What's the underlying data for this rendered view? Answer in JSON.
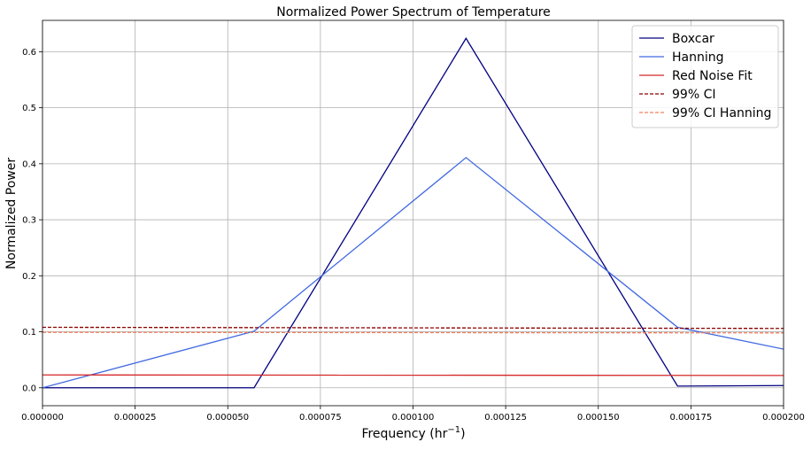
{
  "chart_data": {
    "type": "line",
    "title": "Normalized Power Spectrum of Temperature",
    "xlabel": "Frequency (hr",
    "xlabel_superscript": "−1",
    "xlabel_close": ")",
    "ylabel": "Normalized Power",
    "xlim": [
      0,
      0.0002
    ],
    "ylim": [
      -0.032,
      0.656
    ],
    "grid": true,
    "legend_position": "top-right",
    "x_ticks": [
      0,
      2.5e-05,
      5e-05,
      7.5e-05,
      0.0001,
      0.000125,
      0.00015,
      0.000175,
      0.0002
    ],
    "x_tick_labels": [
      "0.000000",
      "0.000025",
      "0.000050",
      "0.000075",
      "0.000100",
      "0.000125",
      "0.000150",
      "0.000175",
      "0.000200"
    ],
    "y_ticks": [
      0.0,
      0.1,
      0.2,
      0.3,
      0.4,
      0.5,
      0.6
    ],
    "y_tick_labels": [
      "0.0",
      "0.1",
      "0.2",
      "0.3",
      "0.4",
      "0.5",
      "0.6"
    ],
    "series": [
      {
        "name": "Boxcar",
        "color": "#000080",
        "dash": "solid",
        "x": [
          0,
          5.71e-05,
          0.0001143,
          0.0001714,
          0.0002286
        ],
        "y": [
          0.0,
          0.0,
          0.624,
          0.003,
          0.005
        ]
      },
      {
        "name": "Hanning",
        "color": "#4169e1",
        "dash": "solid",
        "x": [
          0,
          5.71e-05,
          0.0001143,
          0.0001714,
          0.0002286
        ],
        "y": [
          0.0,
          0.101,
          0.411,
          0.108,
          0.03
        ]
      },
      {
        "name": "Red Noise Fit",
        "color": "#d62728",
        "dash": "solid",
        "x": [
          0,
          0.0002
        ],
        "y": [
          0.023,
          0.022
        ]
      },
      {
        "name": "99% CI",
        "color": "#8b0000",
        "dash": "dashed",
        "x": [
          0,
          0.0002
        ],
        "y": [
          0.108,
          0.106
        ]
      },
      {
        "name": "99% CI Hanning",
        "color": "#f08060",
        "dash": "dashed",
        "x": [
          0,
          0.0002
        ],
        "y": [
          0.099,
          0.098
        ]
      }
    ]
  }
}
